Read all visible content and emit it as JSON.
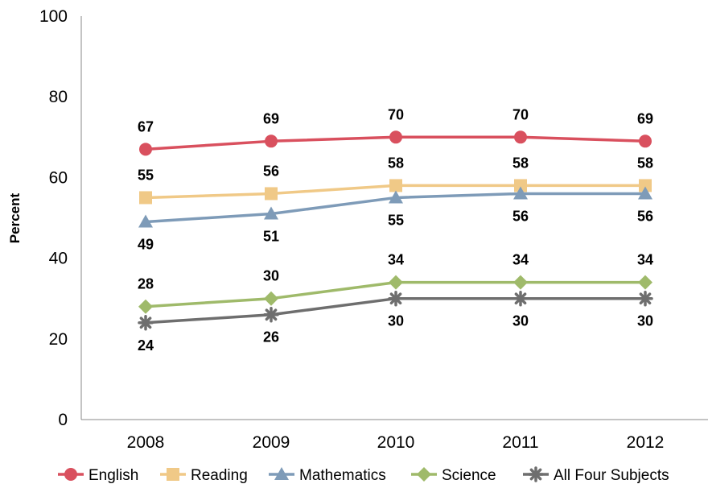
{
  "chart_data": {
    "type": "line",
    "title": "",
    "xlabel": "",
    "ylabel": "Percent",
    "ylim": [
      0,
      100
    ],
    "yticks": [
      0,
      20,
      40,
      60,
      80,
      100
    ],
    "categories": [
      "2008",
      "2009",
      "2010",
      "2011",
      "2012"
    ],
    "grid": false,
    "legend_position": "bottom",
    "series": [
      {
        "name": "English",
        "values": [
          67,
          69,
          70,
          70,
          69
        ],
        "color": "#d9505e",
        "marker": "circle",
        "label_position": "above"
      },
      {
        "name": "Reading",
        "values": [
          55,
          56,
          58,
          58,
          58
        ],
        "color": "#f0c987",
        "marker": "square",
        "label_position": "above"
      },
      {
        "name": "Mathematics",
        "values": [
          49,
          51,
          55,
          56,
          56
        ],
        "color": "#7e9bb8",
        "marker": "triangle",
        "label_position": "below"
      },
      {
        "name": "Science",
        "values": [
          28,
          30,
          34,
          34,
          34
        ],
        "color": "#9fba6a",
        "marker": "diamond",
        "label_position": "above"
      },
      {
        "name": "All Four Subjects",
        "values": [
          24,
          26,
          30,
          30,
          30
        ],
        "color": "#6e6e6e",
        "marker": "asterisk",
        "label_position": "below"
      }
    ]
  }
}
